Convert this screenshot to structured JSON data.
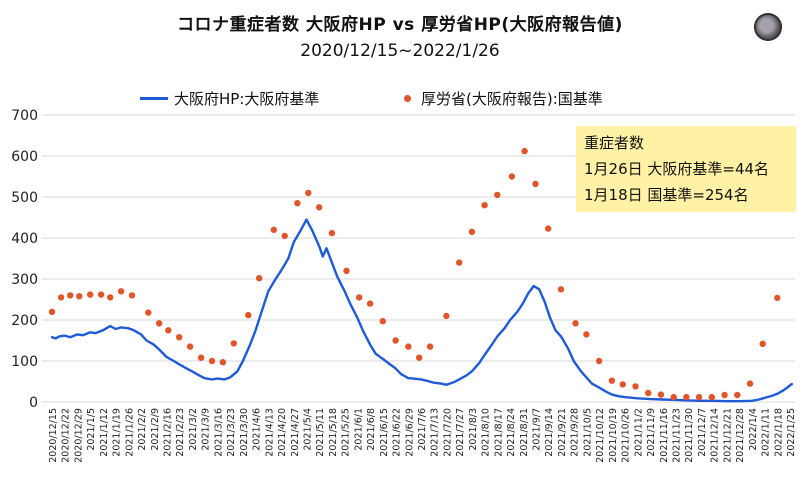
{
  "header": {
    "title": "コロナ重症者数 大阪府HP vs 厚労省HP(大阪府報告値)",
    "subtitle": "2020/12/15~2022/1/26"
  },
  "legend": {
    "osaka_label": "大阪府HP:大阪府基準",
    "mhlw_label": "厚労省(大阪府報告):国基準"
  },
  "info_box": {
    "title": "重症者数",
    "line1": "1月26日  大阪府基準=44名",
    "line2": "1月18日  国基準=254名"
  },
  "colors": {
    "osaka_line": "#1f5bd6",
    "mhlw_dots": "#e0562a",
    "info_box": "#fff2a6"
  },
  "chart_data": {
    "type": "line",
    "title": "コロナ重症者数 大阪府HP vs 厚労省HP(大阪府報告値)",
    "subtitle": "2020/12/15~2022/1/26",
    "ylim": [
      0,
      700
    ],
    "yticks": [
      0,
      100,
      200,
      300,
      400,
      500,
      600,
      700
    ],
    "grid": true,
    "legend_position": "top",
    "x_tick_labels": [
      "2020/12/15",
      "2020/12/22",
      "2020/12/29",
      "2021/1/5",
      "2021/1/12",
      "2021/1/19",
      "2021/1/26",
      "2021/2/2",
      "2021/2/9",
      "2021/2/16",
      "2021/2/23",
      "2021/3/2",
      "2021/3/9",
      "2021/3/16",
      "2021/3/23",
      "2021/3/30",
      "2021/4/6",
      "2021/4/13",
      "2021/4/20",
      "2021/4/27",
      "2021/5/4",
      "2021/5/11",
      "2021/5/18",
      "2021/5/25",
      "2021/6/1",
      "2021/6/8",
      "2021/6/15",
      "2021/6/22",
      "2021/6/29",
      "2021/7/6",
      "2021/7/13",
      "2021/7/20",
      "2021/7/27",
      "2021/8/3",
      "2021/8/10",
      "2021/8/17",
      "2021/8/24",
      "2021/8/31",
      "2021/9/7",
      "2021/9/14",
      "2021/9/21",
      "2021/9/28",
      "2021/10/5",
      "2021/10/12",
      "2021/10/19",
      "2021/10/26",
      "2021/11/2",
      "2021/11/9",
      "2021/11/16",
      "2021/11/23",
      "2021/11/30",
      "2021/12/7",
      "2021/12/14",
      "2021/12/21",
      "2021/12/28",
      "2022/1/4",
      "2022/1/11",
      "2022/1/18",
      "2022/1/25"
    ],
    "series": [
      {
        "name": "大阪府HP:大阪府基準",
        "style": "line",
        "points": [
          [
            "2020/12/15",
            158
          ],
          [
            "2020/12/17",
            155
          ],
          [
            "2020/12/19",
            160
          ],
          [
            "2020/12/22",
            162
          ],
          [
            "2020/12/25",
            158
          ],
          [
            "2020/12/29",
            165
          ],
          [
            "2021/1/1",
            163
          ],
          [
            "2021/1/5",
            170
          ],
          [
            "2021/1/8",
            168
          ],
          [
            "2021/1/12",
            175
          ],
          [
            "2021/1/16",
            185
          ],
          [
            "2021/1/19",
            178
          ],
          [
            "2021/1/22",
            182
          ],
          [
            "2021/1/26",
            180
          ],
          [
            "2021/1/29",
            175
          ],
          [
            "2021/2/2",
            165
          ],
          [
            "2021/2/5",
            150
          ],
          [
            "2021/2/9",
            140
          ],
          [
            "2021/2/12",
            128
          ],
          [
            "2021/2/16",
            110
          ],
          [
            "2021/2/20",
            100
          ],
          [
            "2021/2/23",
            92
          ],
          [
            "2021/2/27",
            82
          ],
          [
            "2021/3/2",
            75
          ],
          [
            "2021/3/6",
            65
          ],
          [
            "2021/3/9",
            58
          ],
          [
            "2021/3/13",
            55
          ],
          [
            "2021/3/16",
            57
          ],
          [
            "2021/3/20",
            55
          ],
          [
            "2021/3/23",
            60
          ],
          [
            "2021/3/27",
            75
          ],
          [
            "2021/3/30",
            100
          ],
          [
            "2021/4/3",
            140
          ],
          [
            "2021/4/6",
            175
          ],
          [
            "2021/4/10",
            230
          ],
          [
            "2021/4/13",
            270
          ],
          [
            "2021/4/17",
            300
          ],
          [
            "2021/4/20",
            320
          ],
          [
            "2021/4/24",
            350
          ],
          [
            "2021/4/27",
            390
          ],
          [
            "2021/5/1",
            420
          ],
          [
            "2021/5/4",
            445
          ],
          [
            "2021/5/7",
            420
          ],
          [
            "2021/5/11",
            380
          ],
          [
            "2021/5/13",
            355
          ],
          [
            "2021/5/15",
            375
          ],
          [
            "2021/5/18",
            340
          ],
          [
            "2021/5/21",
            305
          ],
          [
            "2021/5/25",
            270
          ],
          [
            "2021/5/28",
            240
          ],
          [
            "2021/6/1",
            205
          ],
          [
            "2021/6/4",
            175
          ],
          [
            "2021/6/8",
            140
          ],
          [
            "2021/6/11",
            118
          ],
          [
            "2021/6/15",
            105
          ],
          [
            "2021/6/18",
            95
          ],
          [
            "2021/6/22",
            82
          ],
          [
            "2021/6/25",
            68
          ],
          [
            "2021/6/29",
            58
          ],
          [
            "2021/7/2",
            57
          ],
          [
            "2021/7/6",
            55
          ],
          [
            "2021/7/9",
            52
          ],
          [
            "2021/7/13",
            47
          ],
          [
            "2021/7/17",
            45
          ],
          [
            "2021/7/20",
            42
          ],
          [
            "2021/7/24",
            48
          ],
          [
            "2021/7/27",
            55
          ],
          [
            "2021/7/31",
            65
          ],
          [
            "2021/8/3",
            75
          ],
          [
            "2021/8/7",
            95
          ],
          [
            "2021/8/10",
            115
          ],
          [
            "2021/8/14",
            140
          ],
          [
            "2021/8/17",
            160
          ],
          [
            "2021/8/21",
            180
          ],
          [
            "2021/8/24",
            200
          ],
          [
            "2021/8/28",
            220
          ],
          [
            "2021/8/31",
            240
          ],
          [
            "2021/9/3",
            265
          ],
          [
            "2021/9/6",
            283
          ],
          [
            "2021/9/9",
            275
          ],
          [
            "2021/9/12",
            245
          ],
          [
            "2021/9/15",
            205
          ],
          [
            "2021/9/18",
            175
          ],
          [
            "2021/9/21",
            160
          ],
          [
            "2021/9/25",
            130
          ],
          [
            "2021/9/28",
            100
          ],
          [
            "2021/10/2",
            75
          ],
          [
            "2021/10/5",
            60
          ],
          [
            "2021/10/8",
            45
          ],
          [
            "2021/10/12",
            35
          ],
          [
            "2021/10/16",
            25
          ],
          [
            "2021/10/19",
            18
          ],
          [
            "2021/10/23",
            14
          ],
          [
            "2021/10/26",
            12
          ],
          [
            "2021/11/2",
            9
          ],
          [
            "2021/11/9",
            7
          ],
          [
            "2021/11/16",
            6
          ],
          [
            "2021/11/23",
            5
          ],
          [
            "2021/11/30",
            4
          ],
          [
            "2021/12/7",
            3
          ],
          [
            "2021/12/14",
            3
          ],
          [
            "2021/12/21",
            2
          ],
          [
            "2021/12/28",
            2
          ],
          [
            "2022/1/4",
            3
          ],
          [
            "2022/1/8",
            6
          ],
          [
            "2022/1/11",
            10
          ],
          [
            "2022/1/15",
            15
          ],
          [
            "2022/1/18",
            20
          ],
          [
            "2022/1/22",
            30
          ],
          [
            "2022/1/26",
            44
          ]
        ]
      },
      {
        "name": "厚労省(大阪府報告):国基準",
        "style": "dots",
        "points": [
          [
            "2020/12/15",
            220
          ],
          [
            "2020/12/20",
            255
          ],
          [
            "2020/12/25",
            260
          ],
          [
            "2020/12/30",
            258
          ],
          [
            "2021/1/5",
            262
          ],
          [
            "2021/1/11",
            262
          ],
          [
            "2021/1/16",
            255
          ],
          [
            "2021/1/22",
            270
          ],
          [
            "2021/1/28",
            260
          ],
          [
            "2021/2/6",
            218
          ],
          [
            "2021/2/12",
            192
          ],
          [
            "2021/2/17",
            175
          ],
          [
            "2021/2/23",
            158
          ],
          [
            "2021/3/1",
            135
          ],
          [
            "2021/3/7",
            108
          ],
          [
            "2021/3/13",
            100
          ],
          [
            "2021/3/19",
            97
          ],
          [
            "2021/3/25",
            143
          ],
          [
            "2021/4/2",
            212
          ],
          [
            "2021/4/8",
            302
          ],
          [
            "2021/4/16",
            420
          ],
          [
            "2021/4/22",
            405
          ],
          [
            "2021/4/29",
            485
          ],
          [
            "2021/5/5",
            510
          ],
          [
            "2021/5/11",
            475
          ],
          [
            "2021/5/18",
            412
          ],
          [
            "2021/5/26",
            320
          ],
          [
            "2021/6/2",
            255
          ],
          [
            "2021/6/8",
            240
          ],
          [
            "2021/6/15",
            197
          ],
          [
            "2021/6/22",
            150
          ],
          [
            "2021/6/29",
            135
          ],
          [
            "2021/7/5",
            108
          ],
          [
            "2021/7/11",
            135
          ],
          [
            "2021/7/20",
            210
          ],
          [
            "2021/7/27",
            340
          ],
          [
            "2021/8/3",
            415
          ],
          [
            "2021/8/10",
            480
          ],
          [
            "2021/8/17",
            505
          ],
          [
            "2021/8/25",
            550
          ],
          [
            "2021/9/1",
            612
          ],
          [
            "2021/9/7",
            532
          ],
          [
            "2021/9/14",
            423
          ],
          [
            "2021/9/21",
            275
          ],
          [
            "2021/9/29",
            192
          ],
          [
            "2021/10/5",
            165
          ],
          [
            "2021/10/12",
            100
          ],
          [
            "2021/10/19",
            52
          ],
          [
            "2021/10/25",
            43
          ],
          [
            "2021/11/1",
            38
          ],
          [
            "2021/11/8",
            22
          ],
          [
            "2021/11/15",
            18
          ],
          [
            "2021/11/22",
            12
          ],
          [
            "2021/11/29",
            12
          ],
          [
            "2021/12/6",
            12
          ],
          [
            "2021/12/13",
            12
          ],
          [
            "2021/12/20",
            17
          ],
          [
            "2021/12/27",
            17
          ],
          [
            "2022/1/3",
            45
          ],
          [
            "2022/1/10",
            142
          ],
          [
            "2022/1/18",
            254
          ]
        ]
      }
    ]
  }
}
